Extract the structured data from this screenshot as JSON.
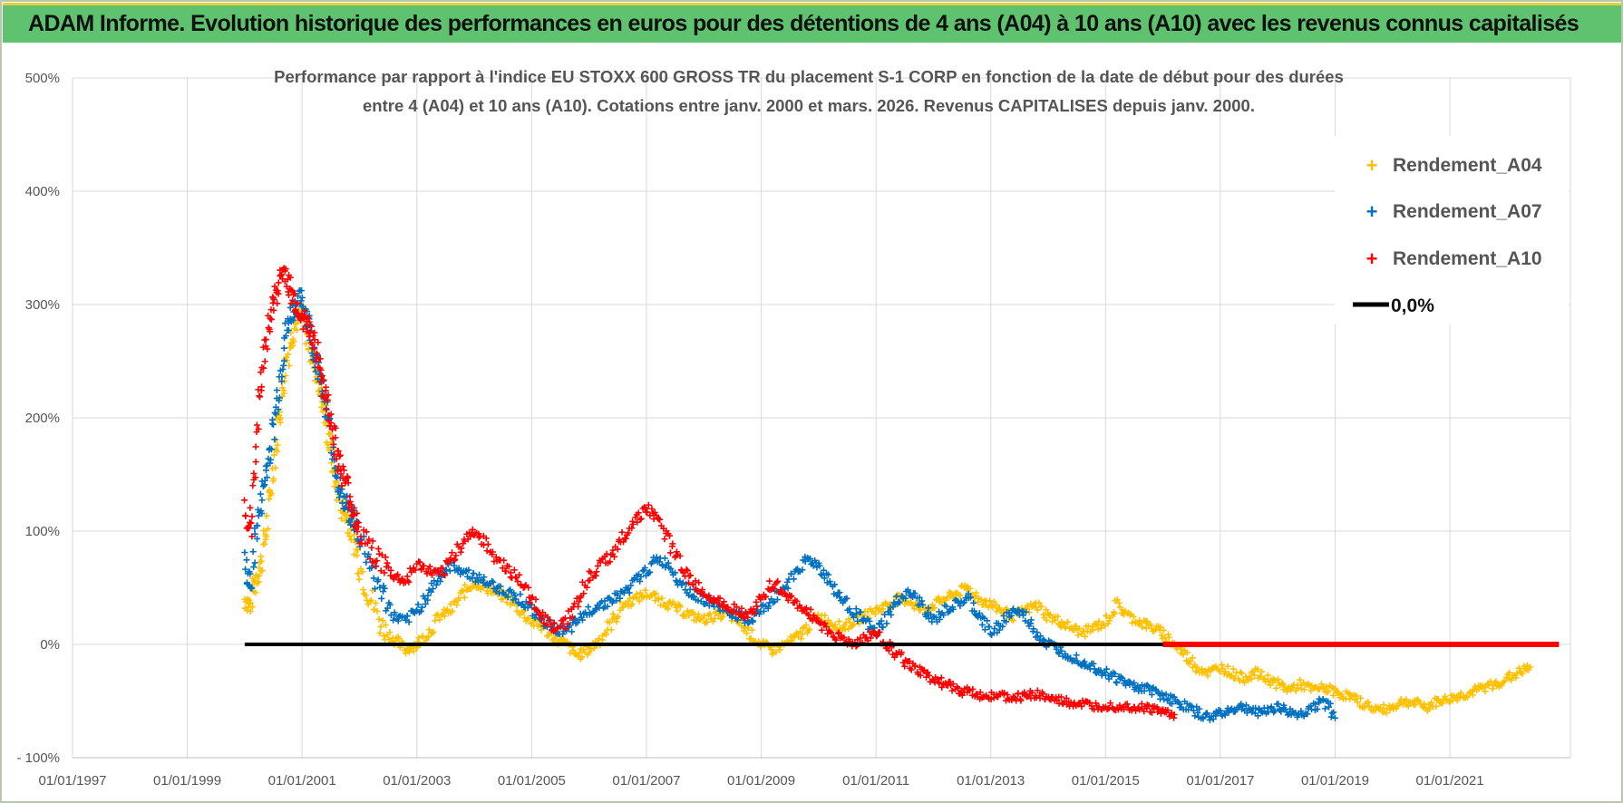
{
  "banner": {
    "title": "ADAM Informe. Evolution historique des performances en euros pour des détentions de 4 ans (A04) à 10 ans (A10) avec les revenus connus capitalisés"
  },
  "colors": {
    "banner_bg": "#5ec26f",
    "banner_accent": "#e6cf3a",
    "A04": "#ffc000",
    "A07": "#0070c0",
    "A10": "#ff0000",
    "zero_line": "#000000",
    "grid": "#d9d9d9"
  },
  "chart_data": {
    "type": "scatter",
    "title_line1": "Performance par rapport à l'indice EU STOXX 600 GROSS TR  du placement S-1 CORP en fonction de la date de début pour des durées",
    "title_line2": "entre 4 (A04) et 10 ans (A10). Cotations entre janv. 2000 et mars. 2026. Revenus CAPITALISES depuis janv. 2000.",
    "x_min": 1997.0,
    "x_max": 2023.1,
    "x_ticks": [
      {
        "label": "01/01/1997",
        "value": 1997
      },
      {
        "label": "01/01/1999",
        "value": 1999
      },
      {
        "label": "01/01/2001",
        "value": 2001
      },
      {
        "label": "01/01/2003",
        "value": 2003
      },
      {
        "label": "01/01/2005",
        "value": 2005
      },
      {
        "label": "01/01/2007",
        "value": 2007
      },
      {
        "label": "01/01/2009",
        "value": 2009
      },
      {
        "label": "01/01/2011",
        "value": 2011
      },
      {
        "label": "01/01/2013",
        "value": 2013
      },
      {
        "label": "01/01/2015",
        "value": 2015
      },
      {
        "label": "01/01/2017",
        "value": 2017
      },
      {
        "label": "01/01/2019",
        "value": 2019
      },
      {
        "label": "01/01/2021",
        "value": 2021
      }
    ],
    "y_min": -100,
    "y_max": 500,
    "y_ticks": [
      {
        "label": "- 100%",
        "value": -100
      },
      {
        "label": "0%",
        "value": 0
      },
      {
        "label": "100%",
        "value": 100
      },
      {
        "label": "200%",
        "value": 200
      },
      {
        "label": "300%",
        "value": 300
      },
      {
        "label": "400%",
        "value": 400
      },
      {
        "label": "500%",
        "value": 500
      }
    ],
    "series": [
      {
        "name": "Rendement_A04",
        "key": "A04",
        "x": [
          2000.0,
          2000.1,
          2000.2,
          2000.3,
          2000.4,
          2000.5,
          2000.6,
          2000.7,
          2000.8,
          2000.9,
          2001.0,
          2001.1,
          2001.2,
          2001.3,
          2001.4,
          2001.5,
          2001.6,
          2001.7,
          2001.8,
          2001.9,
          2002.0,
          2002.2,
          2002.4,
          2002.6,
          2002.8,
          2003.0,
          2003.2,
          2003.4,
          2003.6,
          2003.8,
          2004.0,
          2004.2,
          2004.4,
          2004.6,
          2004.8,
          2005.0,
          2005.2,
          2005.4,
          2005.6,
          2005.8,
          2006.0,
          2006.2,
          2006.4,
          2006.6,
          2006.8,
          2007.0,
          2007.2,
          2007.4,
          2007.6,
          2007.8,
          2008.0,
          2008.2,
          2008.4,
          2008.6,
          2008.8,
          2009.0,
          2009.2,
          2009.4,
          2009.6,
          2009.8,
          2010.0,
          2010.2,
          2010.4,
          2010.6,
          2010.8,
          2011.0,
          2011.2,
          2011.4,
          2011.6,
          2011.8,
          2012.0,
          2012.2,
          2012.4,
          2012.6,
          2012.8,
          2013.0,
          2013.2,
          2013.4,
          2013.6,
          2013.8,
          2014.0,
          2014.2,
          2014.4,
          2014.6,
          2014.8,
          2015.0,
          2015.2,
          2015.4,
          2015.6,
          2015.8,
          2016.0,
          2016.2,
          2016.4,
          2016.6,
          2016.8,
          2017.0,
          2017.2,
          2017.4,
          2017.6,
          2017.8,
          2018.0,
          2018.2,
          2018.4,
          2018.6,
          2018.8,
          2019.0,
          2019.2,
          2019.4,
          2019.6,
          2019.8,
          2020.0,
          2020.2,
          2020.4,
          2020.6,
          2020.8,
          2021.0,
          2021.2,
          2021.4,
          2021.6,
          2021.8,
          2022.0,
          2022.2,
          2022.4
        ],
        "y": [
          40,
          35,
          60,
          75,
          110,
          160,
          200,
          240,
          270,
          285,
          290,
          270,
          250,
          230,
          200,
          170,
          140,
          120,
          110,
          95,
          70,
          40,
          15,
          5,
          -5,
          0,
          10,
          25,
          30,
          45,
          55,
          50,
          45,
          40,
          30,
          20,
          15,
          5,
          0,
          -10,
          -5,
          5,
          20,
          35,
          40,
          45,
          40,
          35,
          30,
          25,
          22,
          25,
          28,
          20,
          10,
          0,
          -5,
          0,
          5,
          15,
          25,
          20,
          15,
          20,
          25,
          30,
          35,
          40,
          38,
          30,
          35,
          40,
          45,
          50,
          40,
          35,
          30,
          25,
          30,
          35,
          25,
          20,
          15,
          10,
          15,
          20,
          35,
          25,
          20,
          15,
          10,
          0,
          -10,
          -20,
          -25,
          -20,
          -25,
          -30,
          -25,
          -30,
          -35,
          -40,
          -35,
          -40,
          -38,
          -42,
          -45,
          -50,
          -55,
          -58,
          -55,
          -50,
          -52,
          -55,
          -50,
          -48,
          -45,
          -42,
          -38,
          -35,
          -30,
          -25,
          -20
        ]
      },
      {
        "name": "Rendement_A07",
        "key": "A07",
        "x": [
          2000.0,
          2000.1,
          2000.2,
          2000.3,
          2000.4,
          2000.5,
          2000.6,
          2000.7,
          2000.8,
          2000.9,
          2001.0,
          2001.1,
          2001.2,
          2001.3,
          2001.4,
          2001.5,
          2001.6,
          2001.7,
          2001.8,
          2001.9,
          2002.0,
          2002.2,
          2002.4,
          2002.6,
          2002.8,
          2003.0,
          2003.2,
          2003.4,
          2003.6,
          2003.8,
          2004.0,
          2004.2,
          2004.4,
          2004.6,
          2004.8,
          2005.0,
          2005.2,
          2005.4,
          2005.6,
          2005.8,
          2006.0,
          2006.2,
          2006.4,
          2006.6,
          2006.8,
          2007.0,
          2007.2,
          2007.4,
          2007.6,
          2007.8,
          2008.0,
          2008.2,
          2008.4,
          2008.6,
          2008.8,
          2009.0,
          2009.2,
          2009.4,
          2009.6,
          2009.8,
          2010.0,
          2010.2,
          2010.4,
          2010.6,
          2010.8,
          2011.0,
          2011.2,
          2011.4,
          2011.6,
          2011.8,
          2012.0,
          2012.2,
          2012.4,
          2012.6,
          2012.8,
          2013.0,
          2013.2,
          2013.4,
          2013.6,
          2013.8,
          2014.0,
          2014.2,
          2014.4,
          2014.6,
          2014.8,
          2015.0,
          2015.2,
          2015.4,
          2015.6,
          2015.8,
          2016.0,
          2016.2,
          2016.4,
          2016.6,
          2016.8,
          2017.0,
          2017.2,
          2017.4,
          2017.6,
          2017.8,
          2018.0,
          2018.2,
          2018.4,
          2018.6,
          2018.8,
          2019.0
        ],
        "y": [
          70,
          50,
          100,
          130,
          160,
          190,
          230,
          270,
          290,
          300,
          305,
          285,
          260,
          240,
          215,
          185,
          150,
          130,
          120,
          110,
          95,
          70,
          45,
          25,
          20,
          30,
          45,
          60,
          70,
          65,
          60,
          55,
          50,
          45,
          40,
          30,
          20,
          15,
          10,
          20,
          30,
          35,
          40,
          45,
          55,
          65,
          75,
          70,
          55,
          45,
          40,
          35,
          30,
          25,
          20,
          30,
          40,
          50,
          65,
          75,
          70,
          55,
          40,
          30,
          20,
          10,
          25,
          40,
          45,
          35,
          20,
          30,
          35,
          40,
          25,
          10,
          20,
          30,
          25,
          10,
          0,
          -5,
          -10,
          -15,
          -20,
          -25,
          -30,
          -35,
          -38,
          -40,
          -45,
          -50,
          -55,
          -60,
          -65,
          -60,
          -58,
          -55,
          -60,
          -58,
          -55,
          -60,
          -62,
          -55,
          -50,
          -65
        ]
      },
      {
        "name": "Rendement_A10",
        "key": "A10",
        "x": [
          2000.0,
          2000.1,
          2000.2,
          2000.3,
          2000.4,
          2000.5,
          2000.6,
          2000.7,
          2000.8,
          2000.9,
          2001.0,
          2001.1,
          2001.2,
          2001.3,
          2001.4,
          2001.5,
          2001.6,
          2001.7,
          2001.8,
          2001.9,
          2002.0,
          2002.2,
          2002.4,
          2002.6,
          2002.8,
          2003.0,
          2003.2,
          2003.4,
          2003.6,
          2003.8,
          2004.0,
          2004.2,
          2004.4,
          2004.6,
          2004.8,
          2005.0,
          2005.2,
          2005.4,
          2005.6,
          2005.8,
          2006.0,
          2006.2,
          2006.4,
          2006.6,
          2006.8,
          2007.0,
          2007.2,
          2007.4,
          2007.6,
          2007.8,
          2008.0,
          2008.2,
          2008.4,
          2008.6,
          2008.8,
          2009.0,
          2009.2,
          2009.4,
          2009.6,
          2009.8,
          2010.0,
          2010.2,
          2010.4,
          2010.6,
          2010.8,
          2011.0,
          2011.2,
          2011.4,
          2011.6,
          2011.8,
          2012.0,
          2012.2,
          2012.4,
          2012.6,
          2012.8,
          2013.0,
          2013.2,
          2013.4,
          2013.6,
          2013.8,
          2014.0,
          2014.2,
          2014.4,
          2014.6,
          2014.8,
          2015.0,
          2015.2,
          2015.4,
          2015.6,
          2015.8,
          2016.0,
          2016.2
        ],
        "y": [
          120,
          100,
          180,
          240,
          280,
          300,
          320,
          330,
          310,
          300,
          290,
          280,
          270,
          250,
          220,
          200,
          170,
          150,
          135,
          115,
          100,
          85,
          70,
          60,
          55,
          70,
          65,
          60,
          75,
          90,
          100,
          90,
          75,
          65,
          55,
          40,
          25,
          15,
          20,
          40,
          60,
          70,
          80,
          95,
          110,
          120,
          110,
          90,
          70,
          55,
          45,
          40,
          35,
          30,
          25,
          40,
          55,
          45,
          35,
          30,
          20,
          10,
          5,
          0,
          5,
          10,
          0,
          -10,
          -20,
          -25,
          -30,
          -35,
          -40,
          -42,
          -45,
          -45,
          -46,
          -48,
          -45,
          -44,
          -48,
          -50,
          -52,
          -53,
          -55,
          -54,
          -55,
          -55,
          -56,
          -57,
          -60,
          -62
        ]
      }
    ],
    "zero_line": {
      "name": "0,0%",
      "key": "zero",
      "value": 0,
      "x_start": 2000.0,
      "x_end": 2022.9
    },
    "a10_flat_segment": {
      "x_start": 2016.0,
      "x_end": 2022.9,
      "value": 0
    },
    "legend": {
      "position": "top-right",
      "items": [
        {
          "label": "Rendement_A04",
          "key": "A04"
        },
        {
          "label": "Rendement_A07",
          "key": "A07"
        },
        {
          "label": "Rendement_A10",
          "key": "A10"
        },
        {
          "label": "0,0%",
          "key": "zero"
        }
      ]
    }
  }
}
